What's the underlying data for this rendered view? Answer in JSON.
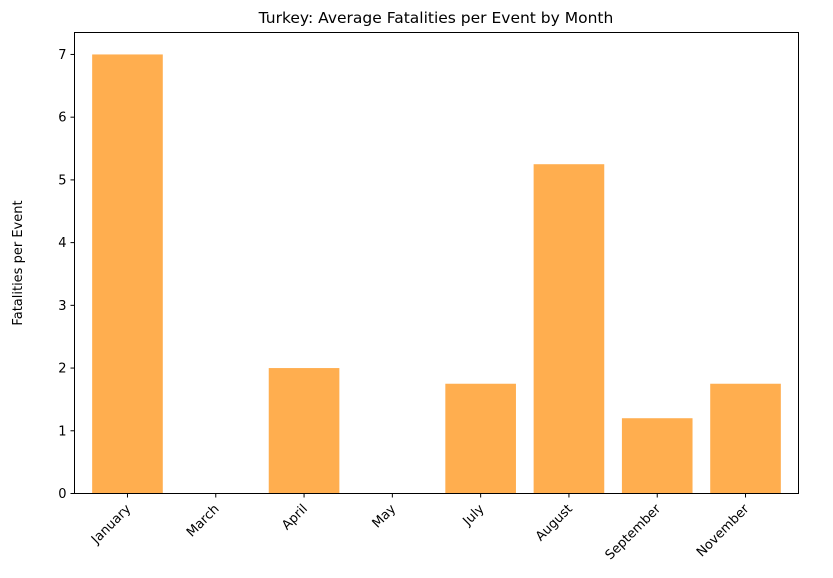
{
  "chart_data": {
    "type": "bar",
    "title": "Turkey: Average Fatalities per Event by Month",
    "xlabel": "",
    "ylabel": "Fatalities per Event",
    "categories": [
      "January",
      "March",
      "April",
      "May",
      "July",
      "August",
      "September",
      "November"
    ],
    "values": [
      7.0,
      0,
      2.0,
      0,
      1.75,
      5.25,
      1.2,
      1.75
    ],
    "ylim": [
      0,
      7.35
    ],
    "yticks": [
      0,
      1,
      2,
      3,
      4,
      5,
      6,
      7
    ],
    "bar_color": "#ffae4f",
    "grid": false,
    "legend": "none"
  }
}
